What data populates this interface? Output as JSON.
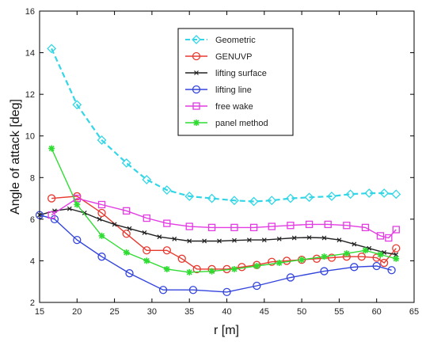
{
  "chart_data": {
    "type": "line",
    "xlabel": "r [m]",
    "ylabel": "Angle of attack [deg]",
    "xlim": [
      15,
      65
    ],
    "ylim": [
      2,
      16
    ],
    "xticks": [
      15,
      20,
      25,
      30,
      35,
      40,
      45,
      50,
      55,
      60,
      65
    ],
    "yticks": [
      2,
      4,
      6,
      8,
      10,
      12,
      14,
      16
    ],
    "grid": false,
    "legend_position": "top-center",
    "series": [
      {
        "name": "Geometric",
        "color": "#33d6e6",
        "marker": "diamond",
        "dashed": true,
        "x": [
          16.6,
          20,
          23.3,
          26.6,
          29.3,
          32,
          35,
          38,
          41,
          43.6,
          46,
          48.5,
          51,
          54,
          56.5,
          59,
          61,
          62.6
        ],
        "y": [
          14.2,
          11.5,
          9.8,
          8.7,
          7.9,
          7.4,
          7.1,
          7.0,
          6.9,
          6.85,
          6.9,
          7.0,
          7.05,
          7.1,
          7.2,
          7.25,
          7.25,
          7.2
        ]
      },
      {
        "name": "GENUVP",
        "color": "#e8392f",
        "marker": "circle",
        "x": [
          16.6,
          20,
          23.3,
          26.6,
          29.3,
          32,
          34,
          36,
          38,
          40,
          42,
          44,
          46,
          48,
          50,
          52,
          54,
          56,
          58,
          60,
          61,
          62.6
        ],
        "y": [
          7.0,
          7.1,
          6.3,
          5.3,
          4.5,
          4.5,
          4.1,
          3.6,
          3.6,
          3.6,
          3.7,
          3.8,
          3.95,
          4.0,
          4.05,
          4.1,
          4.15,
          4.2,
          4.2,
          4.15,
          3.9,
          4.6
        ]
      },
      {
        "name": "lifting surface",
        "color": "#222222",
        "marker": "cross",
        "x": [
          15,
          17,
          19,
          21,
          23,
          25,
          27,
          29,
          31,
          33,
          35,
          37,
          39,
          41,
          43,
          45,
          47,
          49,
          51,
          53,
          55,
          57,
          59,
          61,
          62.6
        ],
        "y": [
          6.2,
          6.4,
          6.5,
          6.3,
          6.0,
          5.75,
          5.55,
          5.35,
          5.15,
          5.05,
          4.95,
          4.95,
          4.95,
          4.98,
          5.0,
          5.0,
          5.05,
          5.1,
          5.12,
          5.1,
          5.0,
          4.8,
          4.6,
          4.4,
          4.3
        ]
      },
      {
        "name": "lifting line",
        "color": "#3344dd",
        "marker": "circle",
        "x": [
          15,
          17,
          20,
          23.3,
          27,
          31.5,
          35.5,
          40,
          44,
          48.5,
          53,
          57,
          60,
          62
        ],
        "y": [
          6.2,
          6.0,
          5.0,
          4.2,
          3.4,
          2.6,
          2.6,
          2.5,
          2.8,
          3.2,
          3.5,
          3.7,
          3.75,
          3.55
        ]
      },
      {
        "name": "free wake",
        "color": "#e23ce2",
        "marker": "square",
        "x": [
          16.6,
          20,
          23.3,
          26.6,
          29.3,
          32,
          35,
          38,
          41,
          43.6,
          46,
          48.5,
          51,
          53.5,
          56,
          58.5,
          60.5,
          61.6,
          62.6
        ],
        "y": [
          6.2,
          7.0,
          6.7,
          6.4,
          6.05,
          5.8,
          5.65,
          5.6,
          5.6,
          5.6,
          5.65,
          5.7,
          5.75,
          5.75,
          5.7,
          5.6,
          5.2,
          5.1,
          5.5
        ]
      },
      {
        "name": "panel method",
        "color": "#2fdc32",
        "marker": "star",
        "x": [
          16.6,
          20,
          23.3,
          26.6,
          29.3,
          32,
          35,
          38,
          41,
          44,
          47,
          50,
          53,
          56,
          58.5,
          60.5,
          62.6
        ],
        "y": [
          9.4,
          6.7,
          5.2,
          4.4,
          4.0,
          3.6,
          3.45,
          3.5,
          3.6,
          3.75,
          3.9,
          4.05,
          4.2,
          4.35,
          4.5,
          4.3,
          4.1
        ]
      }
    ]
  }
}
